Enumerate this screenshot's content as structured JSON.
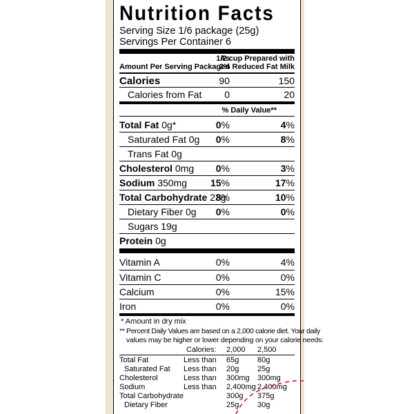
{
  "title": "Nutrition Facts",
  "serving_size": "Serving Size 1/6 package (25g)",
  "servings_per_container": "Servings Per Container 6",
  "header": {
    "amount_per_serving": "Amount Per Serving",
    "as_packaged_1": "As",
    "as_packaged_2": "Packaged",
    "prepared_1": "1/2 cup Prepared with",
    "prepared_2": "2% Reduced Fat Milk"
  },
  "calories": {
    "label": "Calories",
    "packaged": "90",
    "prepared": "150"
  },
  "calories_from_fat": {
    "label": "Calories from Fat",
    "packaged": "0",
    "prepared": "20"
  },
  "daily_value_header": "% Daily Value**",
  "nutrients": {
    "total_fat": {
      "label": "Total Fat",
      "amount": "0g*",
      "packaged_num": "0",
      "prepared_num": "4"
    },
    "saturated_fat": {
      "label": "Saturated Fat 0g",
      "packaged_num": "0",
      "prepared_num": "8"
    },
    "trans_fat": {
      "label": "Trans Fat  0g"
    },
    "cholesterol": {
      "label": "Cholesterol",
      "amount": "0mg",
      "packaged_num": "0",
      "prepared_num": "3"
    },
    "sodium": {
      "label": "Sodium",
      "amount": "350mg",
      "packaged_num": "15",
      "prepared_num": "17"
    },
    "total_carbohydrate": {
      "label": "Total Carbohydrate",
      "amount": "23g",
      "packaged_num": "8",
      "prepared_num": "10"
    },
    "dietary_fiber": {
      "label": "Dietary Fiber 0g",
      "packaged_num": "0",
      "prepared_num": "0"
    },
    "sugars": {
      "label": "Sugars 19g"
    },
    "protein": {
      "label": "Protein",
      "amount": "0g"
    },
    "pct": "%"
  },
  "vitamins": {
    "vitamin_a": {
      "label": "Vitamin A",
      "packaged": "0%",
      "prepared": "4%"
    },
    "vitamin_c": {
      "label": "Vitamin C",
      "packaged": "0%",
      "prepared": "0%"
    },
    "calcium": {
      "label": "Calcium",
      "packaged": "0%",
      "prepared": "15%"
    },
    "iron": {
      "label": "Iron",
      "packaged": "0%",
      "prepared": "0%"
    }
  },
  "footnotes": {
    "dry_mix": "* Amount in dry mix",
    "line1": "** Percent Daily Values are based on a 2,000 calorie diet. Your daily",
    "line2": "values may be higher or lower depending on your calorie needs:"
  },
  "reference_table": {
    "calories_label": "Calories:",
    "col_2000": "2,000",
    "col_2500": "2,500",
    "rows": [
      {
        "label": "Total Fat",
        "qualifier": "Less than",
        "v2000": "65g",
        "v2500": "80g"
      },
      {
        "label": "Saturated Fat",
        "qualifier": "Less than",
        "v2000": "20g",
        "v2500": "25g"
      },
      {
        "label": "Cholesterol",
        "qualifier": "Less than",
        "v2000": "300mg",
        "v2500": "300mg"
      },
      {
        "label": "Sodium",
        "qualifier": "Less than",
        "v2000": "2,400mg",
        "v2500": "2,400mg"
      },
      {
        "label": "Total Carbohydrate",
        "qualifier": "",
        "v2000": "300g",
        "v2500": "375g"
      },
      {
        "label": "Dietary Fiber",
        "qualifier": "",
        "v2000": "25g",
        "v2500": "30g"
      }
    ]
  },
  "colors": {
    "frame": "#efe3cf",
    "cut_line": "#e0007a"
  }
}
